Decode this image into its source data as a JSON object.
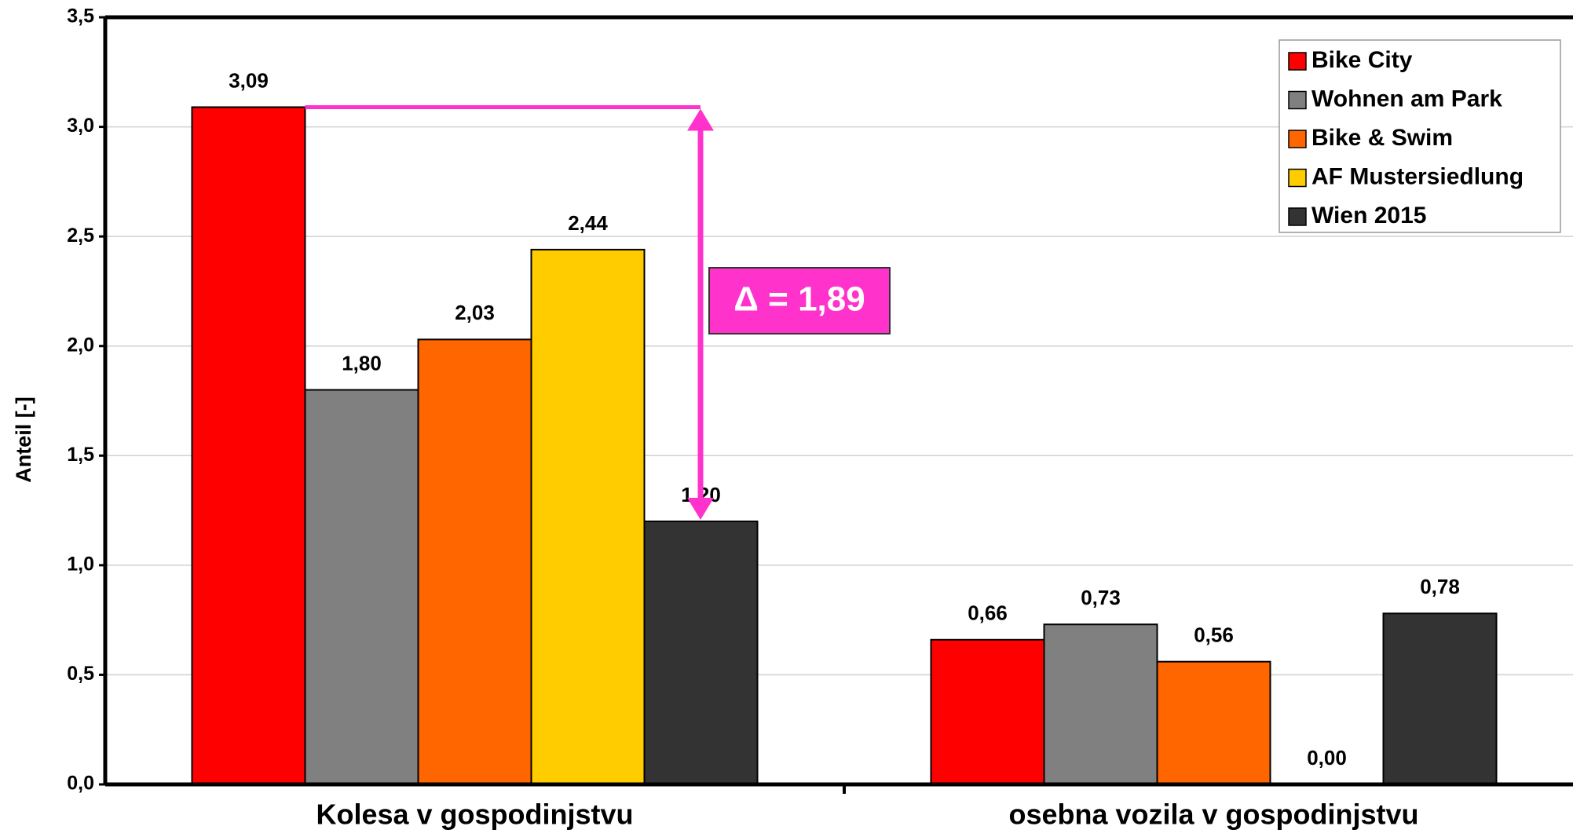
{
  "chart_data": {
    "type": "bar",
    "y_label": "Anteil [-]",
    "categories": [
      "Kolesa v gospodinjstvu",
      "osebna vozila v gospodinjstvu"
    ],
    "series": [
      {
        "name": "Bike City",
        "color": "#ff0000",
        "values": [
          3.09,
          0.66
        ],
        "value_labels": [
          "3,09",
          "0,66"
        ]
      },
      {
        "name": "Wohnen am Park",
        "color": "#808080",
        "values": [
          1.8,
          0.73
        ],
        "value_labels": [
          "1,80",
          "0,73"
        ]
      },
      {
        "name": "Bike & Swim",
        "color": "#ff6600",
        "values": [
          2.03,
          0.56
        ],
        "value_labels": [
          "2,03",
          "0,56"
        ]
      },
      {
        "name": "AF Mustersiedlung",
        "color": "#ffcc00",
        "values": [
          2.44,
          0
        ],
        "value_labels": [
          "2,44",
          "0,00"
        ]
      },
      {
        "name": "Wien 2015",
        "color": "#333333",
        "values": [
          1.2,
          0.78
        ],
        "value_labels": [
          "1,20",
          "0,78"
        ]
      }
    ],
    "ylim": [
      0,
      3.5
    ],
    "yticks": [
      {
        "value": 0,
        "label": "0,0"
      },
      {
        "value": 0.5,
        "label": "0,5"
      },
      {
        "value": 1,
        "label": "1,0"
      },
      {
        "value": 1.5,
        "label": "1,5"
      },
      {
        "value": 2,
        "label": "2,0"
      },
      {
        "value": 2.5,
        "label": "2,5"
      },
      {
        "value": 3,
        "label": "3,0"
      },
      {
        "value": 3.5,
        "label": "3,5"
      }
    ],
    "grid": true,
    "legend": "top-right",
    "annotation": "Δ = 1,89",
    "annotation_color": "#ff33cc"
  }
}
